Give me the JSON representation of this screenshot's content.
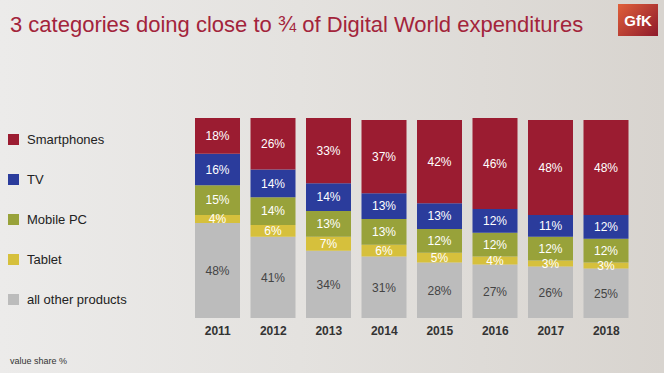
{
  "chart_data": {
    "type": "bar",
    "title": "3 categories doing close to ¾ of Digital World expenditures",
    "annotations": [
      "value share %",
      "GfK"
    ],
    "categories": [
      "2011",
      "2012",
      "2013",
      "2014",
      "2015",
      "2016",
      "2017",
      "2018"
    ],
    "series": [
      {
        "name": "Smartphones",
        "color": "#9b1c31",
        "values": [
          18,
          26,
          33,
          37,
          42,
          46,
          48,
          48
        ],
        "value_labels": [
          "18%",
          "26%",
          "33%",
          "37%",
          "42%",
          "46%",
          "48%",
          "48%"
        ]
      },
      {
        "name": "TV",
        "color": "#2b3c9c",
        "values": [
          16,
          14,
          14,
          13,
          13,
          12,
          11,
          12
        ],
        "value_labels": [
          "16%",
          "14%",
          "14%",
          "13%",
          "13%",
          "12%",
          "11%",
          "12%"
        ]
      },
      {
        "name": "Mobile PC",
        "color": "#98a23a",
        "values": [
          15,
          14,
          13,
          13,
          12,
          12,
          12,
          12
        ],
        "value_labels": [
          "15%",
          "14%",
          "13%",
          "13%",
          "12%",
          "12%",
          "12%",
          "12%"
        ]
      },
      {
        "name": "Tablet",
        "color": "#d6c03c",
        "values": [
          4,
          6,
          7,
          6,
          5,
          4,
          3,
          3
        ],
        "value_labels": [
          "4%",
          "6%",
          "7%",
          "6%",
          "5%",
          "4%",
          "3%",
          "3%"
        ]
      },
      {
        "name": "all other products",
        "color": "#bcbcbc",
        "values": [
          48,
          41,
          34,
          31,
          28,
          27,
          26,
          25
        ],
        "value_labels": [
          "48%",
          "41%",
          "34%",
          "31%",
          "28%",
          "27%",
          "26%",
          "25%"
        ]
      }
    ],
    "ylim": [
      0,
      101
    ],
    "yticks": [
      0,
      101
    ],
    "stacked": true,
    "data_labels": true,
    "tick_labels": "x",
    "grid": false
  }
}
